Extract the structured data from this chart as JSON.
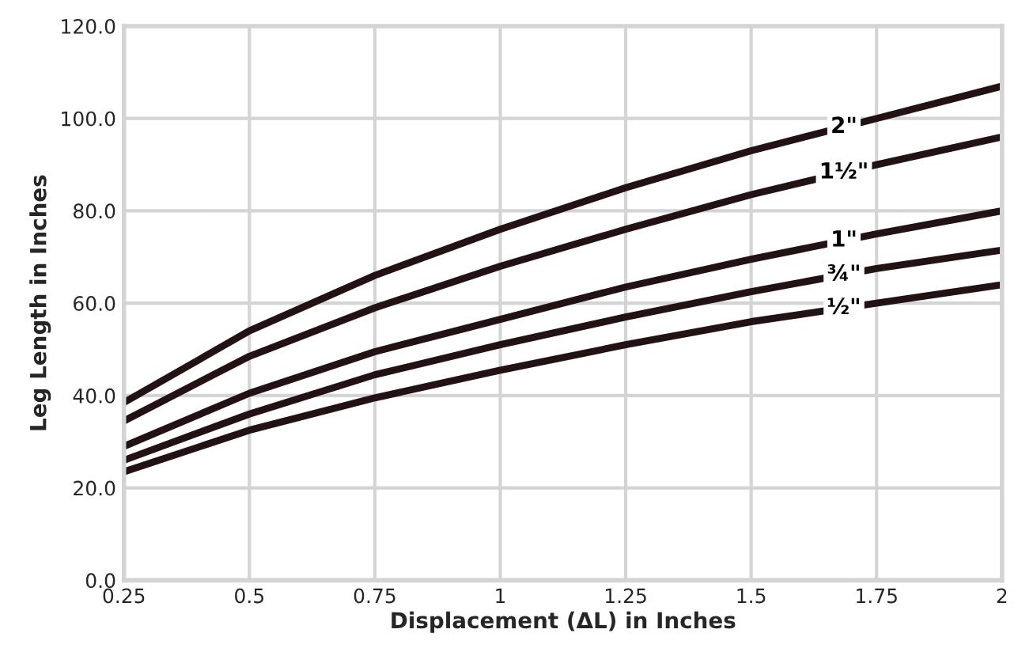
{
  "chart_data": {
    "type": "line",
    "xlabel": "Displacement (ΔL) in Inches",
    "ylabel": "Leg Length in Inches",
    "x": [
      0.25,
      0.5,
      0.75,
      1,
      1.25,
      1.5,
      1.75,
      2
    ],
    "series": [
      {
        "name": "2\"",
        "color": "#231214",
        "values": [
          38.5,
          54,
          66,
          76,
          85,
          93,
          100,
          107
        ]
      },
      {
        "name": "1½\"",
        "color": "#231214",
        "values": [
          34.5,
          48.5,
          59,
          68,
          76,
          83.5,
          90,
          96
        ]
      },
      {
        "name": "1\"",
        "color": "#231214",
        "values": [
          29,
          40.5,
          49.5,
          56.5,
          63.5,
          69.5,
          75,
          80
        ]
      },
      {
        "name": "¾\"",
        "color": "#231214",
        "values": [
          26,
          36,
          44.5,
          51,
          57,
          62.5,
          67.5,
          71.5
        ]
      },
      {
        "name": "½\"",
        "color": "#231214",
        "values": [
          23.5,
          32.5,
          39.5,
          45.5,
          51,
          56,
          60,
          64
        ]
      }
    ],
    "xlim": [
      0.25,
      2
    ],
    "xticks": [
      0.25,
      0.5,
      0.75,
      1,
      1.25,
      1.5,
      1.75,
      2
    ],
    "ylim": [
      0,
      120
    ],
    "yticks": [
      {
        "value": 0,
        "label": "0.0"
      },
      {
        "value": 20,
        "label": "20.0"
      },
      {
        "value": 40,
        "label": "40.0"
      },
      {
        "value": 60,
        "label": "60.0"
      },
      {
        "value": 80,
        "label": "80.0"
      },
      {
        "value": 100,
        "label": "100.0"
      },
      {
        "value": 120,
        "label": "120.0"
      }
    ],
    "grid": true,
    "legend": false,
    "marker": "none",
    "line_style": "solid"
  }
}
